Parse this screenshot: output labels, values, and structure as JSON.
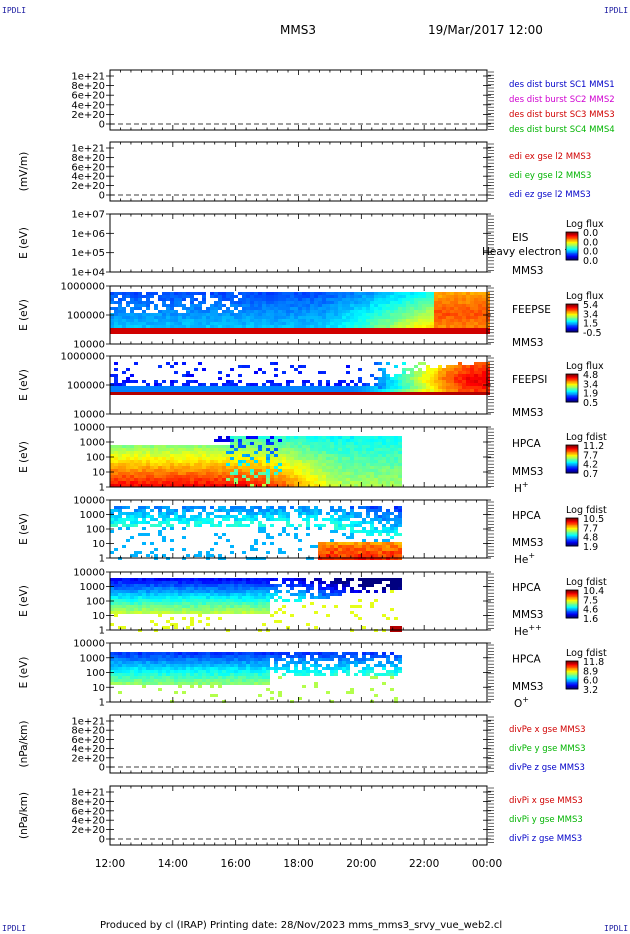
{
  "corner_label": "IPDLI",
  "header": {
    "spacecraft": "MMS3",
    "date": "19/Mar/2017 12:00"
  },
  "footer": "Produced by cl (IRAP)   Printing date: 28/Nov/2023   mms_mms3_srvy_vue_web2.cl",
  "colors": {
    "blue": "#0000c8",
    "magenta": "#d000d0",
    "red": "#d00000",
    "green": "#00b400"
  },
  "chart_data": {
    "type": "heatmap",
    "x_ticks": [
      "12:00",
      "14:00",
      "16:00",
      "18:00",
      "20:00",
      "22:00",
      "00:00"
    ],
    "panels": [
      {
        "kind": "line",
        "ylabel": "",
        "yticks": [
          "1e+21",
          "8e+20",
          "6e+20",
          "4e+20",
          "2e+20",
          "0"
        ],
        "legend": [
          {
            "text": "des dist burst SC1 MMS1",
            "color": "blue"
          },
          {
            "text": "des dist burst SC2 MMS2",
            "color": "magenta"
          },
          {
            "text": "des dist burst SC3 MMS3",
            "color": "red"
          },
          {
            "text": "des dist burst SC4 MMS4",
            "color": "green"
          }
        ]
      },
      {
        "kind": "line",
        "ylabel": "(mV/m)",
        "yticks": [
          "1e+21",
          "8e+20",
          "6e+20",
          "4e+20",
          "2e+20",
          "0"
        ],
        "legend": [
          {
            "text": "edi ex gse l2 MMS3",
            "color": "red"
          },
          {
            "text": "edi ey gse l2 MMS3",
            "color": "green"
          },
          {
            "text": "edi ez gse l2 MMS3",
            "color": "blue"
          }
        ]
      },
      {
        "kind": "spec",
        "ylabel": "E (eV)",
        "yticks": [
          "1e+07",
          "1e+06",
          "1e+05",
          "1e+04"
        ],
        "labels": [
          "EIS",
          "MMS3"
        ],
        "overlay": "Heavy electron to",
        "cbar_title": "Log flux",
        "cbar_ticks": [
          "0.0",
          "0.0",
          "0.0",
          "0.0"
        ],
        "pattern": "empty"
      },
      {
        "kind": "spec",
        "ylabel": "E (eV)",
        "yticks": [
          "1000000",
          "100000",
          "10000"
        ],
        "labels": [
          "FEEPSE",
          "MMS3"
        ],
        "cbar_title": "Log flux",
        "cbar_ticks": [
          "5.4",
          "3.4",
          "1.5",
          "-0.5"
        ],
        "pattern": "feepse"
      },
      {
        "kind": "spec",
        "ylabel": "E (eV)",
        "yticks": [
          "1000000",
          "100000",
          "10000"
        ],
        "labels": [
          "FEEPSI",
          "MMS3"
        ],
        "cbar_title": "Log flux",
        "cbar_ticks": [
          "4.8",
          "3.4",
          "1.9",
          "0.5"
        ],
        "pattern": "feepsi"
      },
      {
        "kind": "spec",
        "ylabel": "E (eV)",
        "yticks": [
          "10000",
          "1000",
          "100",
          "10",
          "1"
        ],
        "labels": [
          "HPCA",
          "MMS3",
          "H+"
        ],
        "cbar_title": "Log fdist",
        "cbar_ticks": [
          "11.2",
          "7.7",
          "4.2",
          "0.7"
        ],
        "pattern": "hplus"
      },
      {
        "kind": "spec",
        "ylabel": "E (eV)",
        "yticks": [
          "10000",
          "1000",
          "100",
          "10",
          "1"
        ],
        "labels": [
          "HPCA",
          "MMS3",
          "He+"
        ],
        "cbar_title": "Log fdist",
        "cbar_ticks": [
          "10.5",
          "7.7",
          "4.8",
          "1.9"
        ],
        "pattern": "heplus"
      },
      {
        "kind": "spec",
        "ylabel": "E (eV)",
        "yticks": [
          "10000",
          "1000",
          "100",
          "10",
          "1"
        ],
        "labels": [
          "HPCA",
          "MMS3",
          "He++"
        ],
        "cbar_title": "Log fdist",
        "cbar_ticks": [
          "10.4",
          "7.5",
          "4.6",
          "1.6"
        ],
        "pattern": "heplusplus"
      },
      {
        "kind": "spec",
        "ylabel": "E (eV)",
        "yticks": [
          "10000",
          "1000",
          "100",
          "10",
          "1"
        ],
        "labels": [
          "HPCA",
          "MMS3",
          "O+"
        ],
        "cbar_title": "Log fdist",
        "cbar_ticks": [
          "11.8",
          "8.9",
          "6.0",
          "3.2"
        ],
        "pattern": "oplus"
      },
      {
        "kind": "line",
        "ylabel": "(nPa/km)",
        "yticks": [
          "1e+21",
          "8e+20",
          "6e+20",
          "4e+20",
          "2e+20",
          "0"
        ],
        "legend": [
          {
            "text": "divPe x gse MMS3",
            "color": "red"
          },
          {
            "text": "divPe y gse MMS3",
            "color": "green"
          },
          {
            "text": "divPe z gse MMS3",
            "color": "blue"
          }
        ]
      },
      {
        "kind": "line",
        "ylabel": "(nPa/km)",
        "yticks": [
          "1e+21",
          "8e+20",
          "6e+20",
          "4e+20",
          "2e+20",
          "0"
        ],
        "legend": [
          {
            "text": "divPi x gse MMS3",
            "color": "red"
          },
          {
            "text": "divPi y gse MMS3",
            "color": "green"
          },
          {
            "text": "divPi z gse MMS3",
            "color": "blue"
          }
        ]
      }
    ]
  }
}
